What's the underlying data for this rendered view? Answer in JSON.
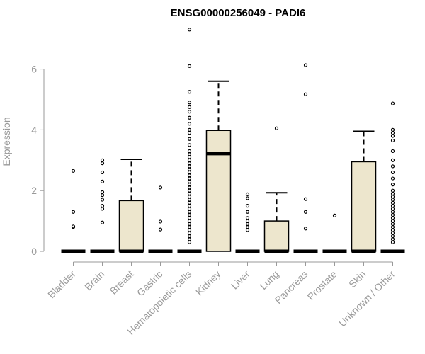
{
  "chart_data": {
    "type": "box",
    "title": "ENSG00000256049 - PADI6",
    "xlabel": "",
    "ylabel": "Expression",
    "ylim": [
      0,
      7.3
    ],
    "yticks": [
      0,
      2,
      4,
      6
    ],
    "box_fill": "#ede6cd",
    "categories": [
      "Bladder",
      "Brain",
      "Breast",
      "Gastric",
      "Hematopoietic cells",
      "Kidney",
      "Liver",
      "Lung",
      "Pancreas",
      "Prostate",
      "Skin",
      "Unknown / Other"
    ],
    "boxes": [
      {
        "category": "Bladder",
        "q1": 0,
        "median": 0,
        "q3": 0,
        "whisker_low": 0,
        "whisker_high": 0,
        "outliers": [
          0.8,
          0.82,
          1.3,
          2.65
        ]
      },
      {
        "category": "Brain",
        "q1": 0,
        "median": 0,
        "q3": 0,
        "whisker_low": 0,
        "whisker_high": 0,
        "outliers": [
          0.95,
          1.4,
          1.5,
          1.7,
          1.85,
          1.95,
          2.3,
          2.6,
          2.9,
          3.0
        ]
      },
      {
        "category": "Breast",
        "q1": 0,
        "median": 0,
        "q3": 1.67,
        "whisker_low": 0,
        "whisker_high": 3.03,
        "outliers": []
      },
      {
        "category": "Gastric",
        "q1": 0,
        "median": 0,
        "q3": 0,
        "whisker_low": 0,
        "whisker_high": 0,
        "outliers": [
          0.72,
          0.98,
          2.1
        ]
      },
      {
        "category": "Hematopoietic cells",
        "q1": 0,
        "median": 0,
        "q3": 0,
        "whisker_low": 0,
        "whisker_high": 0,
        "outliers": [
          0.3,
          0.4,
          0.5,
          0.6,
          0.7,
          0.8,
          0.9,
          1.0,
          1.1,
          1.2,
          1.3,
          1.4,
          1.5,
          1.6,
          1.7,
          1.8,
          1.9,
          2.0,
          2.1,
          2.2,
          2.3,
          2.4,
          2.5,
          2.6,
          2.7,
          2.8,
          2.9,
          3.0,
          3.1,
          3.2,
          3.3,
          3.5,
          3.7,
          3.9,
          4.0,
          4.2,
          4.4,
          4.6,
          4.75,
          4.9,
          5.25,
          6.1,
          7.3
        ]
      },
      {
        "category": "Kidney",
        "q1": 0,
        "median": 3.22,
        "q3": 3.98,
        "whisker_low": 0,
        "whisker_high": 5.6,
        "outliers": []
      },
      {
        "category": "Liver",
        "q1": 0,
        "median": 0,
        "q3": 0,
        "whisker_low": 0,
        "whisker_high": 0,
        "outliers": [
          0.7,
          0.8,
          0.9,
          1.0,
          1.1,
          1.3,
          1.5,
          1.75,
          1.88
        ]
      },
      {
        "category": "Lung",
        "q1": 0,
        "median": 0,
        "q3": 1.0,
        "whisker_low": 0,
        "whisker_high": 1.93,
        "outliers": [
          4.05
        ]
      },
      {
        "category": "Pancreas",
        "q1": 0,
        "median": 0,
        "q3": 0,
        "whisker_low": 0,
        "whisker_high": 0,
        "outliers": [
          0.75,
          1.3,
          1.72,
          5.17,
          6.13
        ]
      },
      {
        "category": "Prostate",
        "q1": 0,
        "median": 0,
        "q3": 0,
        "whisker_low": 0,
        "whisker_high": 0,
        "outliers": [
          1.18
        ]
      },
      {
        "category": "Skin",
        "q1": 0,
        "median": 0,
        "q3": 2.95,
        "whisker_low": 0,
        "whisker_high": 3.95,
        "outliers": []
      },
      {
        "category": "Unknown / Other",
        "q1": 0,
        "median": 0,
        "q3": 0,
        "whisker_low": 0,
        "whisker_high": 0,
        "outliers": [
          0.3,
          0.4,
          0.5,
          0.6,
          0.7,
          0.8,
          0.9,
          1.0,
          1.1,
          1.2,
          1.3,
          1.4,
          1.5,
          1.6,
          1.7,
          1.8,
          1.9,
          2.0,
          2.2,
          2.4,
          2.6,
          2.8,
          3.0,
          3.3,
          3.65,
          3.8,
          3.9,
          4.0,
          4.87
        ]
      }
    ]
  }
}
